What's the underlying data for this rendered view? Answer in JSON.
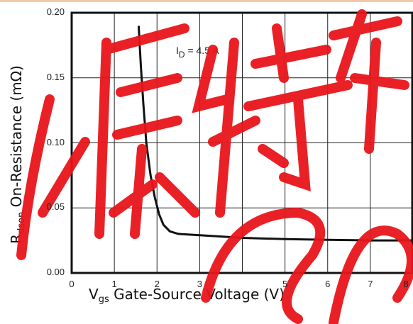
{
  "chart_data": {
    "type": "line",
    "title": "",
    "xlabel": {
      "main": "V",
      "sub": "gs",
      "rest": " Gate-Source Voltage (V)"
    },
    "ylabel": {
      "main": "R",
      "sub": "dson",
      "rest": " On-Resistance (mΩ)"
    },
    "xlim": [
      0,
      8
    ],
    "ylim": [
      0,
      0.2
    ],
    "x_ticks": [
      "0",
      "1",
      "2",
      "3",
      "5",
      "6",
      "7",
      "8"
    ],
    "y_ticks": [
      "0.00",
      "0.05",
      "0.10",
      "0.15",
      "0.20"
    ],
    "grid": true,
    "annotation": {
      "main": "I",
      "sub": "D",
      "rest": " = 4.5 A"
    },
    "series": [
      {
        "x": [
          1.57,
          1.62,
          1.68,
          1.75,
          1.85,
          1.95,
          2.05,
          2.15,
          2.3,
          2.5,
          3,
          4,
          5,
          6,
          7,
          8
        ],
        "y": [
          0.19,
          0.16,
          0.13,
          0.1,
          0.075,
          0.058,
          0.045,
          0.037,
          0.032,
          0.03,
          0.029,
          0.027,
          0.026,
          0.0255,
          0.025,
          0.025
        ]
      }
    ]
  },
  "colors": {
    "line": "#111111",
    "grid": "#222222",
    "watermark": "#e8161b"
  },
  "watermark_text": "源特"
}
